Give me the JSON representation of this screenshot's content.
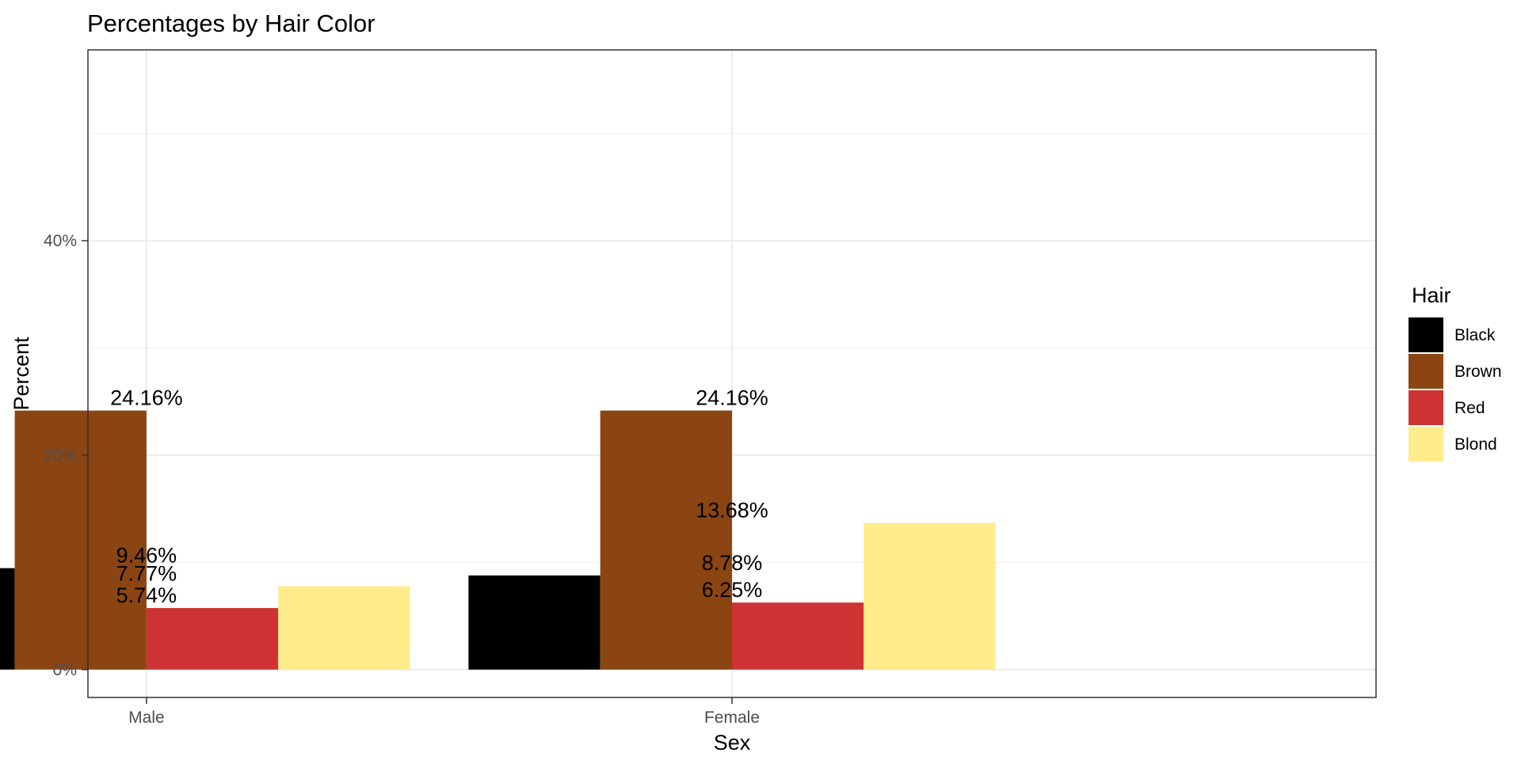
{
  "chart_data": {
    "type": "bar",
    "title": "Percentages by Hair Color",
    "xlabel": "Sex",
    "ylabel": "Percent",
    "categories": [
      "Male",
      "Female"
    ],
    "series": [
      {
        "name": "Black",
        "color": "#000000",
        "values": [
          9.46,
          8.78
        ]
      },
      {
        "name": "Brown",
        "color": "#8B4513",
        "values": [
          24.16,
          24.16
        ]
      },
      {
        "name": "Red",
        "color": "#CD3333",
        "values": [
          5.74,
          6.25
        ]
      },
      {
        "name": "Blond",
        "color": "#FFEC8B",
        "values": [
          7.77,
          13.68
        ]
      }
    ],
    "data_labels": [
      [
        "9.46%",
        "8.78%"
      ],
      [
        "24.16%",
        "24.16%"
      ],
      [
        "5.74%",
        "6.25%"
      ],
      [
        "7.77%",
        "13.68%"
      ]
    ],
    "y_ticks": [
      0,
      20,
      40
    ],
    "y_tick_labels": [
      "0%",
      "20%",
      "40%"
    ],
    "ylim": [
      -2.6,
      57.8
    ],
    "legend_title": "Hair",
    "legend_position": "right",
    "grid": true,
    "theme": "bw"
  }
}
